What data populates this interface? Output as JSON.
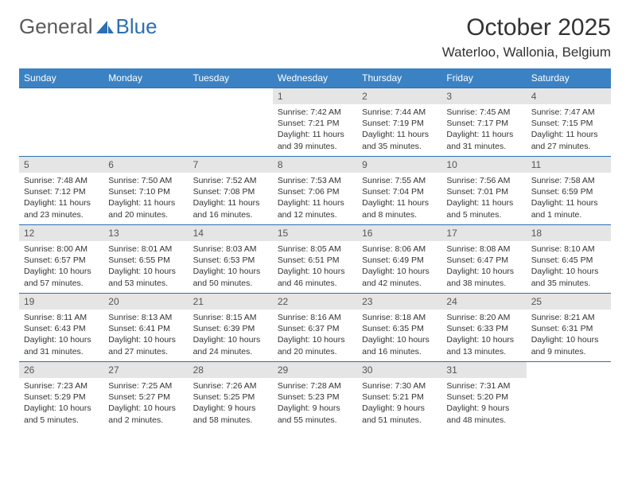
{
  "logo": {
    "text1": "General",
    "text2": "Blue"
  },
  "title": "October 2025",
  "location": "Waterloo, Wallonia, Belgium",
  "colors": {
    "header_bg": "#3b82c4",
    "header_text": "#ffffff",
    "border": "#2d6fb3",
    "daynum_bg": "#e5e5e5",
    "body_text": "#333333"
  },
  "weekdays": [
    "Sunday",
    "Monday",
    "Tuesday",
    "Wednesday",
    "Thursday",
    "Friday",
    "Saturday"
  ],
  "weeks": [
    [
      null,
      null,
      null,
      {
        "n": "1",
        "sr": "Sunrise: 7:42 AM",
        "ss": "Sunset: 7:21 PM",
        "dl": "Daylight: 11 hours and 39 minutes."
      },
      {
        "n": "2",
        "sr": "Sunrise: 7:44 AM",
        "ss": "Sunset: 7:19 PM",
        "dl": "Daylight: 11 hours and 35 minutes."
      },
      {
        "n": "3",
        "sr": "Sunrise: 7:45 AM",
        "ss": "Sunset: 7:17 PM",
        "dl": "Daylight: 11 hours and 31 minutes."
      },
      {
        "n": "4",
        "sr": "Sunrise: 7:47 AM",
        "ss": "Sunset: 7:15 PM",
        "dl": "Daylight: 11 hours and 27 minutes."
      }
    ],
    [
      {
        "n": "5",
        "sr": "Sunrise: 7:48 AM",
        "ss": "Sunset: 7:12 PM",
        "dl": "Daylight: 11 hours and 23 minutes."
      },
      {
        "n": "6",
        "sr": "Sunrise: 7:50 AM",
        "ss": "Sunset: 7:10 PM",
        "dl": "Daylight: 11 hours and 20 minutes."
      },
      {
        "n": "7",
        "sr": "Sunrise: 7:52 AM",
        "ss": "Sunset: 7:08 PM",
        "dl": "Daylight: 11 hours and 16 minutes."
      },
      {
        "n": "8",
        "sr": "Sunrise: 7:53 AM",
        "ss": "Sunset: 7:06 PM",
        "dl": "Daylight: 11 hours and 12 minutes."
      },
      {
        "n": "9",
        "sr": "Sunrise: 7:55 AM",
        "ss": "Sunset: 7:04 PM",
        "dl": "Daylight: 11 hours and 8 minutes."
      },
      {
        "n": "10",
        "sr": "Sunrise: 7:56 AM",
        "ss": "Sunset: 7:01 PM",
        "dl": "Daylight: 11 hours and 5 minutes."
      },
      {
        "n": "11",
        "sr": "Sunrise: 7:58 AM",
        "ss": "Sunset: 6:59 PM",
        "dl": "Daylight: 11 hours and 1 minute."
      }
    ],
    [
      {
        "n": "12",
        "sr": "Sunrise: 8:00 AM",
        "ss": "Sunset: 6:57 PM",
        "dl": "Daylight: 10 hours and 57 minutes."
      },
      {
        "n": "13",
        "sr": "Sunrise: 8:01 AM",
        "ss": "Sunset: 6:55 PM",
        "dl": "Daylight: 10 hours and 53 minutes."
      },
      {
        "n": "14",
        "sr": "Sunrise: 8:03 AM",
        "ss": "Sunset: 6:53 PM",
        "dl": "Daylight: 10 hours and 50 minutes."
      },
      {
        "n": "15",
        "sr": "Sunrise: 8:05 AM",
        "ss": "Sunset: 6:51 PM",
        "dl": "Daylight: 10 hours and 46 minutes."
      },
      {
        "n": "16",
        "sr": "Sunrise: 8:06 AM",
        "ss": "Sunset: 6:49 PM",
        "dl": "Daylight: 10 hours and 42 minutes."
      },
      {
        "n": "17",
        "sr": "Sunrise: 8:08 AM",
        "ss": "Sunset: 6:47 PM",
        "dl": "Daylight: 10 hours and 38 minutes."
      },
      {
        "n": "18",
        "sr": "Sunrise: 8:10 AM",
        "ss": "Sunset: 6:45 PM",
        "dl": "Daylight: 10 hours and 35 minutes."
      }
    ],
    [
      {
        "n": "19",
        "sr": "Sunrise: 8:11 AM",
        "ss": "Sunset: 6:43 PM",
        "dl": "Daylight: 10 hours and 31 minutes."
      },
      {
        "n": "20",
        "sr": "Sunrise: 8:13 AM",
        "ss": "Sunset: 6:41 PM",
        "dl": "Daylight: 10 hours and 27 minutes."
      },
      {
        "n": "21",
        "sr": "Sunrise: 8:15 AM",
        "ss": "Sunset: 6:39 PM",
        "dl": "Daylight: 10 hours and 24 minutes."
      },
      {
        "n": "22",
        "sr": "Sunrise: 8:16 AM",
        "ss": "Sunset: 6:37 PM",
        "dl": "Daylight: 10 hours and 20 minutes."
      },
      {
        "n": "23",
        "sr": "Sunrise: 8:18 AM",
        "ss": "Sunset: 6:35 PM",
        "dl": "Daylight: 10 hours and 16 minutes."
      },
      {
        "n": "24",
        "sr": "Sunrise: 8:20 AM",
        "ss": "Sunset: 6:33 PM",
        "dl": "Daylight: 10 hours and 13 minutes."
      },
      {
        "n": "25",
        "sr": "Sunrise: 8:21 AM",
        "ss": "Sunset: 6:31 PM",
        "dl": "Daylight: 10 hours and 9 minutes."
      }
    ],
    [
      {
        "n": "26",
        "sr": "Sunrise: 7:23 AM",
        "ss": "Sunset: 5:29 PM",
        "dl": "Daylight: 10 hours and 5 minutes."
      },
      {
        "n": "27",
        "sr": "Sunrise: 7:25 AM",
        "ss": "Sunset: 5:27 PM",
        "dl": "Daylight: 10 hours and 2 minutes."
      },
      {
        "n": "28",
        "sr": "Sunrise: 7:26 AM",
        "ss": "Sunset: 5:25 PM",
        "dl": "Daylight: 9 hours and 58 minutes."
      },
      {
        "n": "29",
        "sr": "Sunrise: 7:28 AM",
        "ss": "Sunset: 5:23 PM",
        "dl": "Daylight: 9 hours and 55 minutes."
      },
      {
        "n": "30",
        "sr": "Sunrise: 7:30 AM",
        "ss": "Sunset: 5:21 PM",
        "dl": "Daylight: 9 hours and 51 minutes."
      },
      {
        "n": "31",
        "sr": "Sunrise: 7:31 AM",
        "ss": "Sunset: 5:20 PM",
        "dl": "Daylight: 9 hours and 48 minutes."
      },
      null
    ]
  ]
}
